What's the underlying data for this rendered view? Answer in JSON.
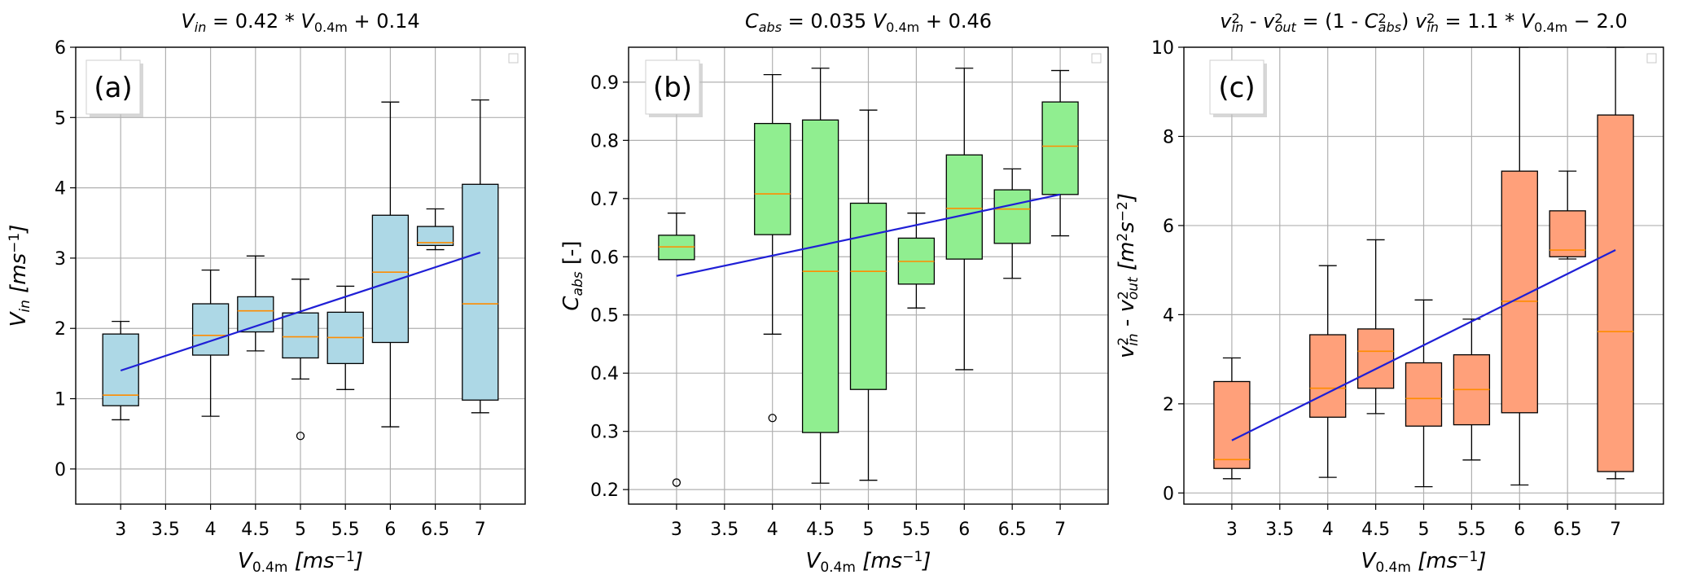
{
  "colors": {
    "fit_line": "#1f1fd6",
    "median": "#ff8c00",
    "panel_a_box": "#add8e6",
    "panel_b_box": "#90ee90",
    "panel_c_box": "#ffa07a"
  },
  "chart_data": [
    {
      "type": "box",
      "panel_label": "(a)",
      "title": "V_in = 0.42 * V_0.4m + 0.14",
      "title_parts": [
        {
          "t": "V",
          "i": true
        },
        {
          "t": "in",
          "i": true,
          "sub": true
        },
        {
          "t": " = 0.42 * ",
          "i": false
        },
        {
          "t": "V",
          "i": true
        },
        {
          "t": "0.4m",
          "i": false,
          "sub": true
        },
        {
          "t": " + 0.14",
          "i": false
        }
      ],
      "xlabel": "V_0.4m [ms^-1]",
      "xlabel_parts": [
        {
          "t": "V",
          "i": true
        },
        {
          "t": "0.4m",
          "i": false,
          "sub": true
        },
        {
          "t": "   [",
          "i": true
        },
        {
          "t": "ms",
          "i": true
        },
        {
          "t": "−1",
          "i": false,
          "sup": true
        },
        {
          "t": "]",
          "i": true
        }
      ],
      "ylabel": "V_in [ms^-1]",
      "ylabel_parts": [
        {
          "t": "V",
          "i": true
        },
        {
          "t": "in",
          "i": true,
          "sub": true
        },
        {
          "t": "   [",
          "i": true
        },
        {
          "t": "ms",
          "i": true
        },
        {
          "t": "−1",
          "i": false,
          "sup": true
        },
        {
          "t": "]",
          "i": true
        }
      ],
      "x_ticks": [
        "3",
        "3.5",
        "4",
        "4.5",
        "5",
        "5.5",
        "6",
        "6.5",
        "7"
      ],
      "x_tick_values": [
        3,
        3.5,
        4,
        4.5,
        5,
        5.5,
        6,
        6.5,
        7
      ],
      "xlim": [
        2.5,
        7.5
      ],
      "y_ticks": [
        "0",
        "1",
        "2",
        "3",
        "4",
        "5",
        "6"
      ],
      "y_tick_values": [
        0,
        1,
        2,
        3,
        4,
        5,
        6
      ],
      "ylim": [
        -0.5,
        6.0
      ],
      "grid": true,
      "legend": "top-right (empty)",
      "box_color_key": "panel_a_box",
      "boxes": [
        {
          "x": 3.0,
          "whisker_low": 0.7,
          "q1": 0.9,
          "median": 1.05,
          "q3": 1.92,
          "whisker_high": 2.1,
          "outliers": []
        },
        {
          "x": 4.0,
          "whisker_low": 0.75,
          "q1": 1.62,
          "median": 1.9,
          "q3": 2.35,
          "whisker_high": 2.83,
          "outliers": []
        },
        {
          "x": 4.5,
          "whisker_low": 1.68,
          "q1": 1.95,
          "median": 2.25,
          "q3": 2.45,
          "whisker_high": 3.03,
          "outliers": []
        },
        {
          "x": 5.0,
          "whisker_low": 1.28,
          "q1": 1.58,
          "median": 1.88,
          "q3": 2.22,
          "whisker_high": 2.7,
          "outliers": [
            0.47
          ]
        },
        {
          "x": 5.5,
          "whisker_low": 1.13,
          "q1": 1.5,
          "median": 1.87,
          "q3": 2.23,
          "whisker_high": 2.6,
          "outliers": []
        },
        {
          "x": 6.0,
          "whisker_low": 0.6,
          "q1": 1.8,
          "median": 2.8,
          "q3": 3.61,
          "whisker_high": 5.22,
          "outliers": []
        },
        {
          "x": 6.5,
          "whisker_low": 3.12,
          "q1": 3.18,
          "median": 3.22,
          "q3": 3.45,
          "whisker_high": 3.7,
          "outliers": []
        },
        {
          "x": 7.0,
          "whisker_low": 0.8,
          "q1": 0.98,
          "median": 2.35,
          "q3": 4.05,
          "whisker_high": 5.25,
          "outliers": []
        }
      ],
      "fit_line": {
        "x": [
          3,
          7
        ],
        "y": [
          1.4,
          3.08
        ]
      }
    },
    {
      "type": "box",
      "panel_label": "(b)",
      "title": "C_abs = 0.035 V_0.4m + 0.46",
      "title_parts": [
        {
          "t": "C",
          "i": true
        },
        {
          "t": "abs",
          "i": true,
          "sub": true
        },
        {
          "t": " = 0.035 ",
          "i": false
        },
        {
          "t": "V",
          "i": true
        },
        {
          "t": "0.4m",
          "i": false,
          "sub": true
        },
        {
          "t": " + 0.46",
          "i": false
        }
      ],
      "xlabel": "V_0.4m [ms^-1]",
      "xlabel_parts": [
        {
          "t": "V",
          "i": true
        },
        {
          "t": "0.4m",
          "i": false,
          "sub": true
        },
        {
          "t": "   [",
          "i": true
        },
        {
          "t": "ms",
          "i": true
        },
        {
          "t": "−1",
          "i": false,
          "sup": true
        },
        {
          "t": "]",
          "i": true
        }
      ],
      "ylabel": "C_abs [-]",
      "ylabel_parts": [
        {
          "t": "C",
          "i": true
        },
        {
          "t": "abs",
          "i": true,
          "sub": true
        },
        {
          "t": " [-]",
          "i": false
        }
      ],
      "x_ticks": [
        "3",
        "3.5",
        "4",
        "4.5",
        "5",
        "5.5",
        "6",
        "6.5",
        "7"
      ],
      "x_tick_values": [
        3,
        3.5,
        4,
        4.5,
        5,
        5.5,
        6,
        6.5,
        7
      ],
      "xlim": [
        2.5,
        7.5
      ],
      "y_ticks": [
        "0.2",
        "0.3",
        "0.4",
        "0.5",
        "0.6",
        "0.7",
        "0.8",
        "0.9"
      ],
      "y_tick_values": [
        0.2,
        0.3,
        0.4,
        0.5,
        0.6,
        0.7,
        0.8,
        0.9
      ],
      "ylim": [
        0.175,
        0.96
      ],
      "grid": true,
      "legend": "top-right (empty)",
      "box_color_key": "panel_b_box",
      "boxes": [
        {
          "x": 3.0,
          "whisker_low": 0.595,
          "q1": 0.595,
          "median": 0.617,
          "q3": 0.637,
          "whisker_high": 0.675,
          "outliers": [
            0.212
          ]
        },
        {
          "x": 4.0,
          "whisker_low": 0.467,
          "q1": 0.638,
          "median": 0.708,
          "q3": 0.829,
          "whisker_high": 0.913,
          "outliers": [
            0.323
          ]
        },
        {
          "x": 4.5,
          "whisker_low": 0.211,
          "q1": 0.298,
          "median": 0.575,
          "q3": 0.835,
          "whisker_high": 0.924,
          "outliers": []
        },
        {
          "x": 5.0,
          "whisker_low": 0.216,
          "q1": 0.372,
          "median": 0.575,
          "q3": 0.692,
          "whisker_high": 0.852,
          "outliers": []
        },
        {
          "x": 5.5,
          "whisker_low": 0.512,
          "q1": 0.553,
          "median": 0.592,
          "q3": 0.632,
          "whisker_high": 0.675,
          "outliers": []
        },
        {
          "x": 6.0,
          "whisker_low": 0.406,
          "q1": 0.596,
          "median": 0.683,
          "q3": 0.775,
          "whisker_high": 0.924,
          "outliers": []
        },
        {
          "x": 6.5,
          "whisker_low": 0.563,
          "q1": 0.623,
          "median": 0.682,
          "q3": 0.715,
          "whisker_high": 0.751,
          "outliers": []
        },
        {
          "x": 7.0,
          "whisker_low": 0.636,
          "q1": 0.707,
          "median": 0.79,
          "q3": 0.866,
          "whisker_high": 0.92,
          "outliers": []
        }
      ],
      "fit_line": {
        "x": [
          3,
          7
        ],
        "y": [
          0.567,
          0.707
        ]
      }
    },
    {
      "type": "box",
      "panel_label": "(c)",
      "title": "v_in^2 - v_out^2 = (1 - C_abs^2) v_in^2 = 1.1 * V_0.4m - 2.0",
      "title_parts": [
        {
          "t": "v",
          "i": true
        },
        {
          "t": "2",
          "i": false,
          "supsub": "in"
        },
        {
          "t": " - ",
          "i": false
        },
        {
          "t": "v",
          "i": true
        },
        {
          "t": "2",
          "i": false,
          "supsub": "out"
        },
        {
          "t": " = (1 - ",
          "i": false
        },
        {
          "t": "C",
          "i": true
        },
        {
          "t": "2",
          "i": false,
          "supsub": "abs"
        },
        {
          "t": ") ",
          "i": false
        },
        {
          "t": "v",
          "i": true
        },
        {
          "t": "2",
          "i": false,
          "supsub": "in"
        },
        {
          "t": "  =  1.1 * ",
          "i": false
        },
        {
          "t": "V",
          "i": true
        },
        {
          "t": "0.4m",
          "i": false,
          "sub": true
        },
        {
          "t": " − 2.0",
          "i": false
        }
      ],
      "xlabel": "V_0.4m [ms^-1]",
      "xlabel_parts": [
        {
          "t": "V",
          "i": true
        },
        {
          "t": "0.4m",
          "i": false,
          "sub": true
        },
        {
          "t": "   [",
          "i": true
        },
        {
          "t": "ms",
          "i": true
        },
        {
          "t": "−1",
          "i": false,
          "sup": true
        },
        {
          "t": "]",
          "i": true
        }
      ],
      "ylabel": "v_in^2 - v_out^2 [m^2 s^-2]",
      "ylabel_parts": [
        {
          "t": "v",
          "i": true
        },
        {
          "t": "2",
          "i": false,
          "supsub": "in"
        },
        {
          "t": " - ",
          "i": false
        },
        {
          "t": "v",
          "i": true
        },
        {
          "t": "2",
          "i": false,
          "supsub": "out"
        },
        {
          "t": "  [",
          "i": true
        },
        {
          "t": "m",
          "i": true
        },
        {
          "t": "2",
          "i": false,
          "sup": true
        },
        {
          "t": "s",
          "i": true
        },
        {
          "t": "−2",
          "i": false,
          "sup": true
        },
        {
          "t": "]",
          "i": true
        }
      ],
      "x_ticks": [
        "3",
        "3.5",
        "4",
        "4.5",
        "5",
        "5.5",
        "6",
        "6.5",
        "7"
      ],
      "x_tick_values": [
        3,
        3.5,
        4,
        4.5,
        5,
        5.5,
        6,
        6.5,
        7
      ],
      "xlim": [
        2.5,
        7.5
      ],
      "y_ticks": [
        "0",
        "2",
        "4",
        "6",
        "8",
        "10"
      ],
      "y_tick_values": [
        0,
        2,
        4,
        6,
        8,
        10
      ],
      "ylim": [
        -0.25,
        10.0
      ],
      "grid": true,
      "legend": "top-right (empty)",
      "box_color_key": "panel_c_box",
      "boxes": [
        {
          "x": 3.0,
          "whisker_low": 0.32,
          "q1": 0.55,
          "median": 0.75,
          "q3": 2.5,
          "whisker_high": 3.03,
          "outliers": []
        },
        {
          "x": 4.0,
          "whisker_low": 0.35,
          "q1": 1.7,
          "median": 2.35,
          "q3": 3.55,
          "whisker_high": 5.1,
          "outliers": []
        },
        {
          "x": 4.5,
          "whisker_low": 1.78,
          "q1": 2.35,
          "median": 3.18,
          "q3": 3.68,
          "whisker_high": 5.68,
          "outliers": []
        },
        {
          "x": 5.0,
          "whisker_low": 0.14,
          "q1": 1.5,
          "median": 2.12,
          "q3": 2.92,
          "whisker_high": 4.33,
          "outliers": []
        },
        {
          "x": 5.5,
          "whisker_low": 0.74,
          "q1": 1.53,
          "median": 2.32,
          "q3": 3.1,
          "whisker_high": 3.9,
          "outliers": []
        },
        {
          "x": 6.0,
          "whisker_low": 0.18,
          "q1": 1.8,
          "median": 4.3,
          "q3": 7.22,
          "whisker_high": 10.0,
          "outliers": []
        },
        {
          "x": 6.5,
          "whisker_low": 5.25,
          "q1": 5.3,
          "median": 5.45,
          "q3": 6.33,
          "whisker_high": 7.22,
          "outliers": []
        },
        {
          "x": 7.0,
          "whisker_low": 0.32,
          "q1": 0.48,
          "median": 3.62,
          "q3": 8.48,
          "whisker_high": 10.0,
          "outliers": []
        }
      ],
      "fit_line": {
        "x": [
          3,
          7
        ],
        "y": [
          1.18,
          5.45
        ]
      }
    }
  ]
}
